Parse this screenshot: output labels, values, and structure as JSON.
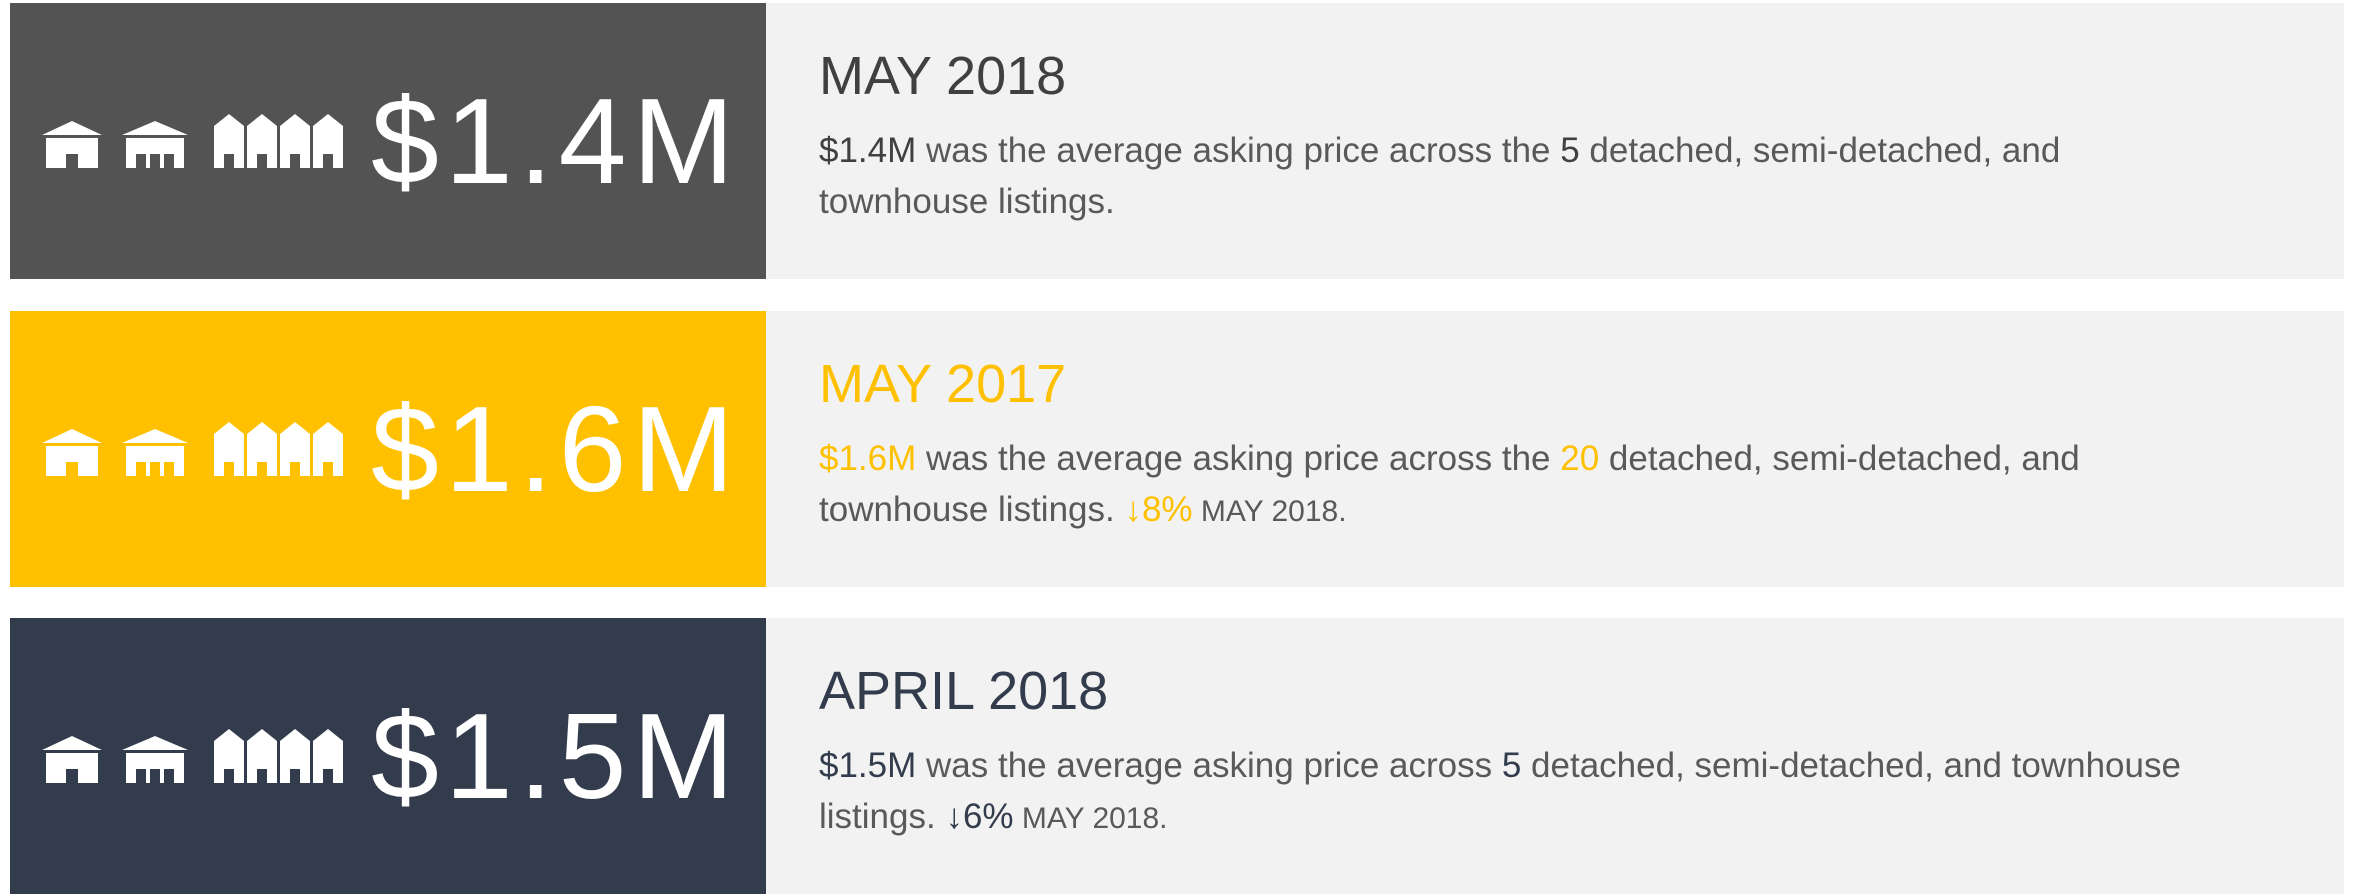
{
  "cards": [
    {
      "price": "$1.4M",
      "period": "MAY 2018",
      "color": "#535353",
      "accent": "#404040",
      "description": [
        {
          "text": "$1.4M",
          "highlight": true
        },
        {
          "text": " was the average asking price across the ",
          "highlight": false
        },
        {
          "text": "5",
          "highlight": true
        },
        {
          "text": " detached, semi-detached, and townhouse listings.",
          "highlight": false
        }
      ]
    },
    {
      "price": "$1.6M",
      "period": "MAY 2017",
      "color": "#ffc000",
      "accent": "#ffc000",
      "description": [
        {
          "text": "$1.6M",
          "highlight": true
        },
        {
          "text": " was the average asking price across the ",
          "highlight": false
        },
        {
          "text": "20",
          "highlight": true
        },
        {
          "text": " detached, semi-detached, and townhouse listings. ",
          "highlight": false
        },
        {
          "text": "↓8%",
          "highlight": true
        },
        {
          "text": " MAY 2018.",
          "highlight": false
        }
      ]
    },
    {
      "price": "$1.5M",
      "period": "APRIL 2018",
      "color": "#323c4c",
      "accent": "#323c4c",
      "description": [
        {
          "text": "$1.5M",
          "highlight": true
        },
        {
          "text": " was the average asking price across ",
          "highlight": false
        },
        {
          "text": "5",
          "highlight": true
        },
        {
          "text": " detached, semi-detached, and townhouse listings. ",
          "highlight": false
        },
        {
          "text": "↓6%",
          "highlight": true
        },
        {
          "text": " MAY 2018.",
          "highlight": false
        }
      ]
    }
  ]
}
